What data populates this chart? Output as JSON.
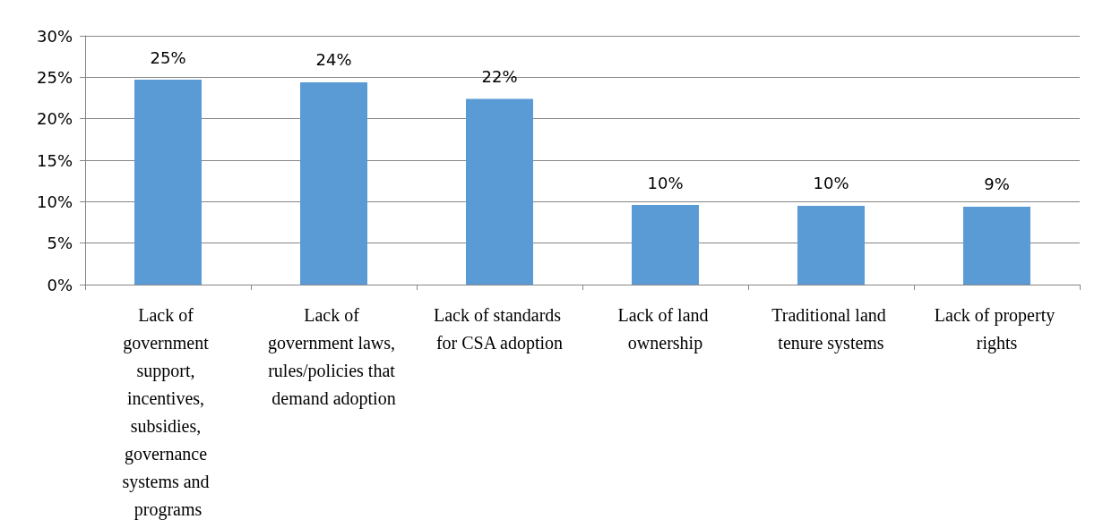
{
  "chart_data": {
    "type": "bar",
    "categories": [
      "Lack of government support, incentives, subsidies, governance systems and programs",
      "Lack of government laws, rules/policies that demand adoption",
      "Lack of standards for CSA adoption",
      "Lack of land ownership",
      "Traditional land tenure systems",
      "Lack of property rights"
    ],
    "values": [
      24.7,
      24.4,
      22.4,
      9.6,
      9.5,
      9.4
    ],
    "value_labels": [
      "25%",
      "24%",
      "22%",
      "10%",
      "10%",
      "9%"
    ],
    "color": "#5b9bd5",
    "ylim": [
      0,
      30
    ],
    "yticks": [
      {
        "value": 0,
        "label": "0%"
      },
      {
        "value": 5,
        "label": "5%"
      },
      {
        "value": 10,
        "label": "10%"
      },
      {
        "value": 15,
        "label": "15%"
      },
      {
        "value": 20,
        "label": "20%"
      },
      {
        "value": 25,
        "label": "25%"
      },
      {
        "value": 30,
        "label": "30%"
      }
    ],
    "grid": "y"
  }
}
